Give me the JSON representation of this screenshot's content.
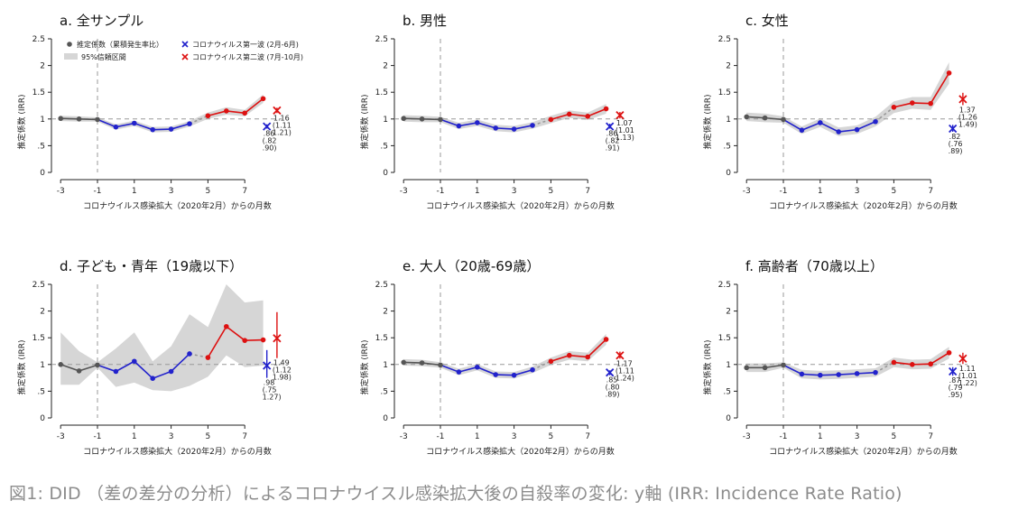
{
  "figure": {
    "caption": "図1: DID （差の差分の分析）によるコロナウイスル感染拡大後の自殺率の変化: y軸 (IRR: Incidence Rate Ratio)",
    "legend": {
      "estimate": "推定係数（累積発生率比）",
      "ci": "95%信頼区間",
      "wave1": "コロナウイルス第一波 (2月-6月)",
      "wave2": "コロナウイルス第二波 (7月-10月)"
    },
    "colors": {
      "pre": "#555555",
      "wave1": "#2222cc",
      "wave2": "#dd1111",
      "ci": "#d6d6d6",
      "ref": "#999999"
    }
  },
  "chart_data": [
    {
      "type": "line",
      "title": "a. 全サンプル",
      "xlabel": "コロナウイルス感染拡大（2020年2月）からの月数",
      "ylabel": "推定係数 (IRR)",
      "xlim": [
        -3.5,
        9
      ],
      "ylim": [
        0,
        2.5
      ],
      "xticks": [
        -3,
        -1,
        1,
        3,
        5,
        7
      ],
      "yticks": [
        0,
        0.5,
        1,
        1.5,
        2,
        2.5
      ],
      "ytick_labels": [
        "0",
        ".5",
        "1",
        "1.5",
        "2",
        "2.5"
      ],
      "x": [
        -3,
        -2,
        -1,
        0,
        1,
        2,
        3,
        4,
        5,
        6,
        7,
        8
      ],
      "y": [
        1.01,
        1.0,
        0.99,
        0.85,
        0.92,
        0.8,
        0.81,
        0.91,
        1.06,
        1.15,
        1.11,
        1.38
      ],
      "ci_low": [
        0.96,
        0.95,
        0.95,
        0.8,
        0.87,
        0.75,
        0.76,
        0.86,
        1.0,
        1.08,
        1.05,
        1.3
      ],
      "ci_high": [
        1.06,
        1.05,
        1.03,
        0.9,
        0.97,
        0.85,
        0.86,
        0.96,
        1.12,
        1.22,
        1.17,
        1.46
      ],
      "legend_position": "top-left",
      "wave1": {
        "value": 0.86,
        "low": 0.82,
        "high": 0.9,
        "labels": [
          ".86",
          "(.82",
          ".90)"
        ]
      },
      "wave2": {
        "value": 1.16,
        "low": 1.11,
        "high": 1.21,
        "labels": [
          "1.16",
          "(1.11",
          "1.21)"
        ]
      }
    },
    {
      "type": "line",
      "title": "b. 男性",
      "xlabel": "コロナウイルス感染拡大（2020年2月）からの月数",
      "ylabel": "推定係数 (IRR)",
      "xlim": [
        -3.5,
        9
      ],
      "ylim": [
        0,
        2.5
      ],
      "xticks": [
        -3,
        -1,
        1,
        3,
        5,
        7
      ],
      "yticks": [
        0,
        0.5,
        1,
        1.5,
        2,
        2.5
      ],
      "ytick_labels": [
        "0",
        ".5",
        "1",
        "1.5",
        "2",
        "2.5"
      ],
      "x": [
        -3,
        -2,
        -1,
        0,
        1,
        2,
        3,
        4,
        5,
        6,
        7,
        8
      ],
      "y": [
        1.01,
        1.0,
        0.99,
        0.87,
        0.93,
        0.83,
        0.81,
        0.88,
        0.99,
        1.09,
        1.05,
        1.19
      ],
      "ci_low": [
        0.95,
        0.94,
        0.94,
        0.81,
        0.87,
        0.77,
        0.75,
        0.82,
        0.92,
        1.02,
        0.98,
        1.1
      ],
      "ci_high": [
        1.07,
        1.06,
        1.04,
        0.93,
        0.99,
        0.89,
        0.87,
        0.94,
        1.06,
        1.16,
        1.12,
        1.28
      ],
      "wave1": {
        "value": 0.86,
        "low": 0.82,
        "high": 0.91,
        "labels": [
          ".86",
          "(.82",
          ".91)"
        ]
      },
      "wave2": {
        "value": 1.07,
        "low": 1.01,
        "high": 1.13,
        "labels": [
          "1.07",
          "(1.01",
          "1.13)"
        ]
      }
    },
    {
      "type": "line",
      "title": "c. 女性",
      "xlabel": "コロナウイルス感染拡大（2020年2月）からの月数",
      "ylabel": "推定係数 (IRR)",
      "xlim": [
        -3.5,
        9
      ],
      "ylim": [
        0,
        2.5
      ],
      "xticks": [
        -3,
        -1,
        1,
        3,
        5,
        7
      ],
      "yticks": [
        0,
        0.5,
        1,
        1.5,
        2,
        2.5
      ],
      "ytick_labels": [
        "0",
        ".5",
        "1",
        "1.5",
        "2",
        "2.5"
      ],
      "x": [
        -3,
        -2,
        -1,
        0,
        1,
        2,
        3,
        4,
        5,
        6,
        7,
        8
      ],
      "y": [
        1.04,
        1.02,
        0.99,
        0.79,
        0.93,
        0.76,
        0.8,
        0.95,
        1.22,
        1.3,
        1.29,
        1.86
      ],
      "ci_low": [
        0.96,
        0.94,
        0.93,
        0.72,
        0.85,
        0.68,
        0.72,
        0.86,
        1.11,
        1.19,
        1.17,
        1.66
      ],
      "ci_high": [
        1.12,
        1.1,
        1.05,
        0.86,
        1.01,
        0.84,
        0.88,
        1.04,
        1.33,
        1.41,
        1.41,
        2.06
      ],
      "wave1": {
        "value": 0.82,
        "low": 0.76,
        "high": 0.89,
        "labels": [
          ".82",
          "(.76",
          ".89)"
        ]
      },
      "wave2": {
        "value": 1.37,
        "low": 1.26,
        "high": 1.49,
        "labels": [
          "1.37",
          "(1.26",
          "1.49)"
        ]
      }
    },
    {
      "type": "line",
      "title": "d. 子ども・青年（19歳以下）",
      "xlabel": "コロナウイルス感染拡大（2020年2月）からの月数",
      "ylabel": "推定係数 (IRR)",
      "xlim": [
        -3.5,
        9
      ],
      "ylim": [
        0,
        2.5
      ],
      "xticks": [
        -3,
        -1,
        1,
        3,
        5,
        7
      ],
      "yticks": [
        0,
        0.5,
        1,
        1.5,
        2,
        2.5
      ],
      "ytick_labels": [
        "0",
        ".5",
        "1",
        "1.5",
        "2",
        "2.5"
      ],
      "x": [
        -3,
        -2,
        -1,
        0,
        1,
        2,
        3,
        4,
        5,
        6,
        7,
        8
      ],
      "y": [
        1.0,
        0.88,
        0.99,
        0.87,
        1.06,
        0.74,
        0.87,
        1.2,
        1.13,
        1.71,
        1.45,
        1.46
      ],
      "ci_low": [
        0.62,
        0.62,
        0.94,
        0.58,
        0.66,
        0.52,
        0.5,
        0.6,
        0.77,
        1.17,
        0.95,
        0.98
      ],
      "ci_high": [
        1.6,
        1.25,
        1.04,
        1.3,
        1.6,
        1.06,
        1.34,
        1.94,
        1.7,
        2.5,
        2.16,
        2.2
      ],
      "wave1": {
        "value": 0.98,
        "low": 0.75,
        "high": 1.27,
        "labels": [
          ".98",
          "(.75",
          "1.27)"
        ]
      },
      "wave2": {
        "value": 1.49,
        "low": 1.12,
        "high": 1.98,
        "labels": [
          "1.49",
          "(1.12",
          "1.98)"
        ]
      }
    },
    {
      "type": "line",
      "title": "e. 大人（20歳-69歳）",
      "xlabel": "コロナウイルス感染拡大（2020年2月）からの月数",
      "ylabel": "推定係数 (IRR)",
      "xlim": [
        -3.5,
        9
      ],
      "ylim": [
        0,
        2.5
      ],
      "xticks": [
        -3,
        -1,
        1,
        3,
        5,
        7
      ],
      "yticks": [
        0,
        0.5,
        1,
        1.5,
        2,
        2.5
      ],
      "ytick_labels": [
        "0",
        ".5",
        "1",
        "1.5",
        "2",
        "2.5"
      ],
      "x": [
        -3,
        -2,
        -1,
        0,
        1,
        2,
        3,
        4,
        5,
        6,
        7,
        8
      ],
      "y": [
        1.04,
        1.03,
        0.99,
        0.86,
        0.95,
        0.81,
        0.8,
        0.9,
        1.06,
        1.17,
        1.14,
        1.47
      ],
      "ci_low": [
        0.98,
        0.97,
        0.94,
        0.8,
        0.89,
        0.75,
        0.74,
        0.84,
        0.99,
        1.09,
        1.06,
        1.37
      ],
      "ci_high": [
        1.1,
        1.09,
        1.04,
        0.92,
        1.01,
        0.87,
        0.86,
        0.96,
        1.13,
        1.25,
        1.22,
        1.57
      ],
      "wave1": {
        "value": 0.85,
        "low": 0.8,
        "high": 0.89,
        "labels": [
          ".85",
          "(.80",
          ".89)"
        ]
      },
      "wave2": {
        "value": 1.17,
        "low": 1.11,
        "high": 1.24,
        "labels": [
          "1.17",
          "(1.11",
          "1.24)"
        ]
      }
    },
    {
      "type": "line",
      "title": "f. 高齢者（70歳以上）",
      "xlabel": "コロナウイルス感染拡大（2020年2月）からの月数",
      "ylabel": "推定係数 (IRR)",
      "xlim": [
        -3.5,
        9
      ],
      "ylim": [
        0,
        2.5
      ],
      "xticks": [
        -3,
        -1,
        1,
        3,
        5,
        7
      ],
      "yticks": [
        0,
        0.5,
        1,
        1.5,
        2,
        2.5
      ],
      "ytick_labels": [
        "0",
        ".5",
        "1",
        "1.5",
        "2",
        "2.5"
      ],
      "x": [
        -3,
        -2,
        -1,
        0,
        1,
        2,
        3,
        4,
        5,
        6,
        7,
        8
      ],
      "y": [
        0.94,
        0.94,
        0.99,
        0.82,
        0.8,
        0.81,
        0.83,
        0.85,
        1.04,
        1.0,
        1.01,
        1.22
      ],
      "ci_low": [
        0.86,
        0.86,
        0.94,
        0.74,
        0.72,
        0.73,
        0.75,
        0.77,
        0.95,
        0.91,
        0.92,
        1.11
      ],
      "ci_high": [
        1.02,
        1.02,
        1.04,
        0.9,
        0.88,
        0.89,
        0.91,
        0.93,
        1.13,
        1.09,
        1.1,
        1.33
      ],
      "wave1": {
        "value": 0.87,
        "low": 0.79,
        "high": 0.95,
        "labels": [
          ".87",
          "(.79",
          ".95)"
        ]
      },
      "wave2": {
        "value": 1.11,
        "low": 1.01,
        "high": 1.22,
        "labels": [
          "1.11",
          "(1.01",
          "1.22)"
        ]
      }
    }
  ]
}
